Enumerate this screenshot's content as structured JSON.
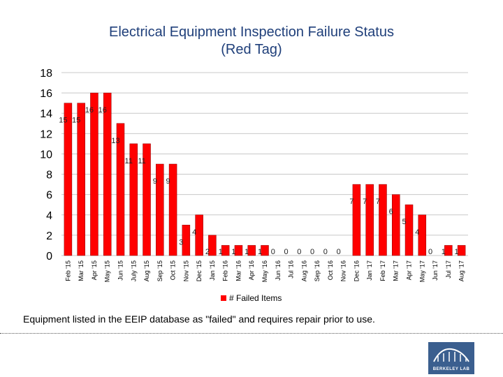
{
  "title_line1": "Electrical Equipment Inspection Failure Status",
  "title_line2": "(Red Tag)",
  "caption": "Equipment listed in the EEIP database as \"failed\" and requires repair prior to use.",
  "logo_text": "BERKELEY LAB",
  "colors": {
    "bar": "#ff0000",
    "title": "#1f3f7a",
    "grid": "#c8c8c8"
  },
  "chart_data": {
    "type": "bar",
    "title": "Electrical Equipment Inspection Failure Status (Red Tag)",
    "categories": [
      "Feb '15",
      "Mar '15",
      "Apr '15",
      "May '15",
      "Jun '15",
      "July '15",
      "Aug '15",
      "Sep '15",
      "Oct '15",
      "Nov '15",
      "Dec '15",
      "Jan '15",
      "Feb '16",
      "Mar '16",
      "Apr '16",
      "May '16",
      "Jun '16",
      "Jul '16",
      "Aug '16",
      "Sep '16",
      "Oct '16",
      "Nov '16",
      "Dec '16",
      "Jan '17",
      "Feb '17",
      "Mar '17",
      "Apr '17",
      "May '17",
      "Jun '17",
      "Jul '17",
      "Aug '17"
    ],
    "series": [
      {
        "name": "# Failed Items",
        "values": [
          15,
          15,
          16,
          16,
          13,
          11,
          11,
          9,
          9,
          3,
          4,
          2,
          1,
          1,
          1,
          1,
          0,
          0,
          0,
          0,
          0,
          0,
          7,
          7,
          7,
          6,
          5,
          4,
          0,
          1,
          1
        ]
      }
    ],
    "yticks": [
      0,
      2,
      4,
      6,
      8,
      10,
      12,
      14,
      16,
      18
    ],
    "ylim": [
      0,
      18
    ],
    "grid": true,
    "legend_position": "bottom"
  }
}
